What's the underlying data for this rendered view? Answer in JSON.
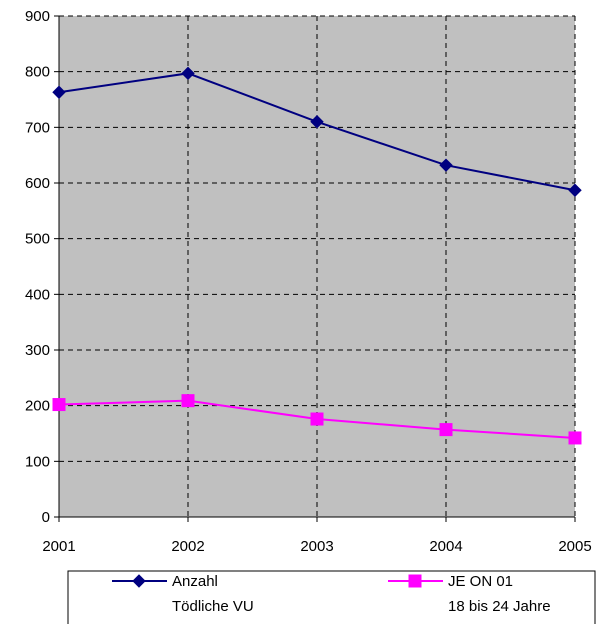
{
  "chart_data": {
    "type": "line",
    "x": [
      "2001",
      "2002",
      "2003",
      "2004",
      "2005"
    ],
    "ylim": [
      0,
      900
    ],
    "yticks": [
      0,
      100,
      200,
      300,
      400,
      500,
      600,
      700,
      800,
      900
    ],
    "grid": true,
    "legend_position": "bottom",
    "plot_background": "#c0c0c0",
    "series": [
      {
        "name_line1": "Anzahl",
        "name_line2": "Tödliche VU",
        "color": "#000080",
        "marker": "diamond",
        "values": [
          763,
          797,
          710,
          632,
          587
        ]
      },
      {
        "name_line1": "JE ON 01",
        "name_line2": "18 bis 24 Jahre",
        "color": "#ff00ff",
        "marker": "square",
        "values": [
          202,
          209,
          176,
          157,
          142
        ]
      }
    ]
  }
}
